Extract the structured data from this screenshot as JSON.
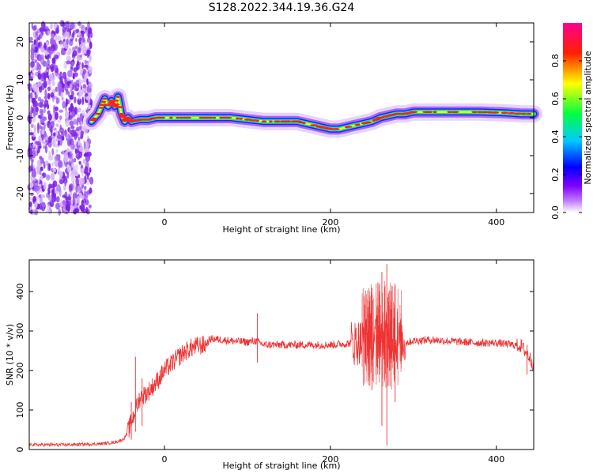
{
  "figure": {
    "title": "S128.2022.344.19.36.G24"
  },
  "chart_data": [
    {
      "type": "heatmap",
      "xlabel": "Height of straight line (km)",
      "ylabel": "Frequency (Hz)",
      "xlim": [
        -163,
        445
      ],
      "ylim": [
        -25,
        25
      ],
      "x_ticks": [
        0,
        200,
        400
      ],
      "y_ticks": [
        -20,
        -10,
        0,
        10,
        20
      ],
      "colorbar": {
        "label": "Normalized spectral amplitude",
        "range": [
          0.0,
          1.0
        ],
        "ticks": [
          0.0,
          0.2,
          0.4,
          0.6,
          0.8
        ],
        "colors": [
          "#ffffff",
          "#b000ff",
          "#0000ff",
          "#00ffff",
          "#00ff00",
          "#ffff00",
          "#ff0000",
          "#ff0080"
        ]
      },
      "ridge": {
        "x": [
          -88,
          -80,
          -72,
          -68,
          -64,
          -60,
          -56,
          -52,
          -48,
          -44,
          -40,
          -30,
          -20,
          -10,
          0,
          20,
          40,
          60,
          80,
          100,
          120,
          140,
          150,
          160,
          170,
          180,
          190,
          200,
          210,
          220,
          230,
          240,
          250,
          260,
          270,
          280,
          290,
          300,
          320,
          350,
          380,
          410,
          430,
          445
        ],
        "y": [
          -1,
          1,
          5,
          3,
          4.5,
          3,
          5.5,
          1,
          -1,
          0,
          -1,
          -0.5,
          -0.5,
          0,
          0,
          0,
          0,
          0,
          0,
          -0.5,
          -1,
          -1,
          -1,
          -1,
          -1.5,
          -2,
          -2.5,
          -3,
          -3,
          -2.5,
          -2,
          -1.5,
          -1,
          0,
          0.5,
          1,
          1,
          1.5,
          1.5,
          1.5,
          1.5,
          1.3,
          1,
          1
        ]
      }
    },
    {
      "type": "line",
      "xlabel": "Height of straight line (km)",
      "ylabel": "SNR (10 * v/v)",
      "xlim": [
        -163,
        445
      ],
      "ylim": [
        0,
        480
      ],
      "x_ticks": [
        0,
        200,
        400
      ],
      "y_ticks": [
        0,
        100,
        200,
        300,
        400
      ],
      "color": "#ee3333",
      "series": [
        {
          "x": [
            -163,
            -120,
            -80,
            -60,
            -50,
            -45,
            -40,
            -35,
            -30,
            -20,
            -10,
            0,
            10,
            20,
            30,
            40,
            50,
            55,
            60,
            80,
            100,
            110,
            120,
            140,
            160,
            180,
            200,
            220,
            240,
            250,
            260,
            270,
            280,
            290,
            300,
            320,
            340,
            360,
            380,
            400,
            420,
            430,
            438,
            445
          ],
          "y": [
            12,
            12,
            14,
            18,
            25,
            40,
            70,
            100,
            130,
            145,
            170,
            200,
            220,
            240,
            255,
            262,
            265,
            280,
            280,
            275,
            272,
            275,
            265,
            265,
            265,
            265,
            265,
            268,
            275,
            285,
            290,
            285,
            275,
            270,
            275,
            278,
            275,
            272,
            270,
            270,
            265,
            262,
            240,
            215
          ]
        }
      ],
      "spikes": [
        {
          "x": -40,
          "min": 25,
          "max": 120
        },
        {
          "x": -35,
          "min": 45,
          "max": 235
        },
        {
          "x": -27,
          "min": 60,
          "max": 180
        },
        {
          "x": 112,
          "min": 220,
          "max": 345
        },
        {
          "x": 250,
          "min": 150,
          "max": 410
        },
        {
          "x": 262,
          "min": 60,
          "max": 450
        },
        {
          "x": 268,
          "min": 10,
          "max": 470
        },
        {
          "x": 278,
          "min": 120,
          "max": 420
        },
        {
          "x": 437,
          "min": 190,
          "max": 265
        }
      ]
    }
  ]
}
